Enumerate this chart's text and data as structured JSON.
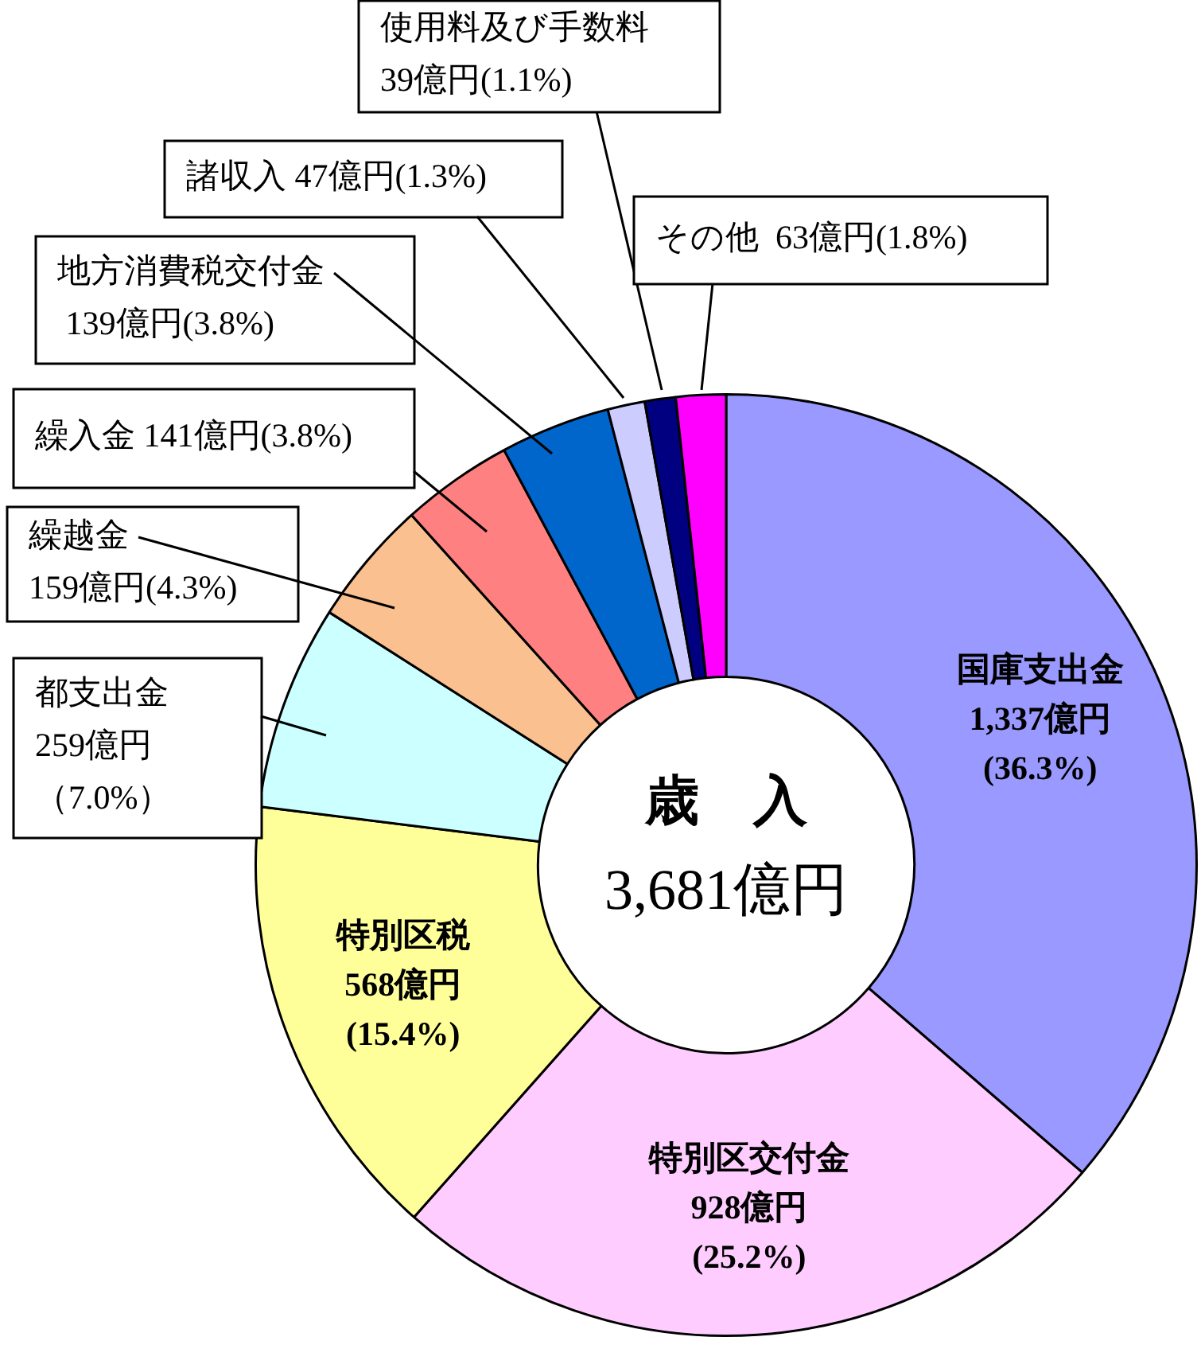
{
  "chart_data": {
    "type": "donut",
    "title": "歳　入",
    "annotations": [
      "3,681億円"
    ],
    "categories": [
      "国庫支出金",
      "特別区交付金",
      "特別区税",
      "都支出金",
      "繰越金",
      "繰入金",
      "地方消費税交付金",
      "諸収入",
      "使用料及び手数料",
      "その他"
    ],
    "values": [
      1337,
      928,
      568,
      259,
      159,
      141,
      139,
      47,
      39,
      63
    ],
    "value_labels": [
      "1,337億円(36.3%)",
      "928億円(25.2%)",
      "568億円(15.4%)",
      "259億円（7.0%）",
      "159億円(4.3%)",
      "141億円(3.8%)",
      " 139億円(3.8%)",
      "47億円(1.3%)",
      "39億円(1.1%)",
      " 63億円(1.8%)"
    ],
    "colors": [
      "#9999ff",
      "#ffccff",
      "#ffff99",
      "#ccffff",
      "#fac090",
      "#ff8080",
      "#0066cc",
      "#ccccff",
      "#000080",
      "#ff00ff"
    ],
    "legend": false
  }
}
